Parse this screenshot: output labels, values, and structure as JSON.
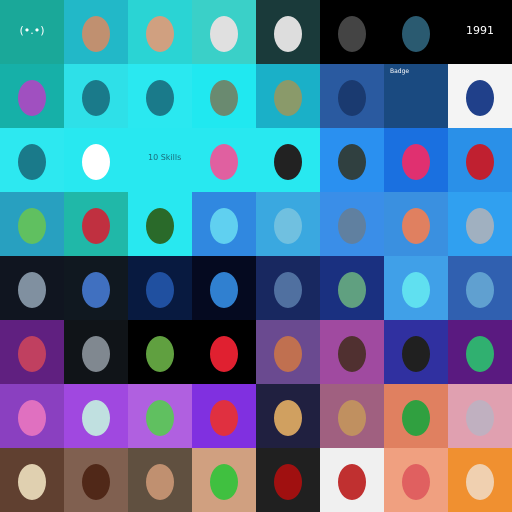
{
  "grid": {
    "rows": [
      [
        "(•.•)",
        null,
        null,
        null,
        null,
        null,
        null,
        "1991"
      ],
      [
        null,
        null,
        null,
        null,
        null,
        null,
        "Badge",
        null
      ],
      [
        null,
        null,
        "10 Skills",
        null,
        null,
        null,
        null,
        null
      ],
      [
        null,
        null,
        null,
        null,
        null,
        null,
        null,
        null
      ],
      [
        null,
        null,
        null,
        null,
        null,
        null,
        null,
        null
      ],
      [
        null,
        null,
        null,
        null,
        null,
        null,
        null,
        null
      ],
      [
        null,
        null,
        null,
        null,
        null,
        null,
        null,
        null
      ],
      [
        null,
        null,
        null,
        null,
        null,
        null,
        null,
        null
      ]
    ]
  }
}
